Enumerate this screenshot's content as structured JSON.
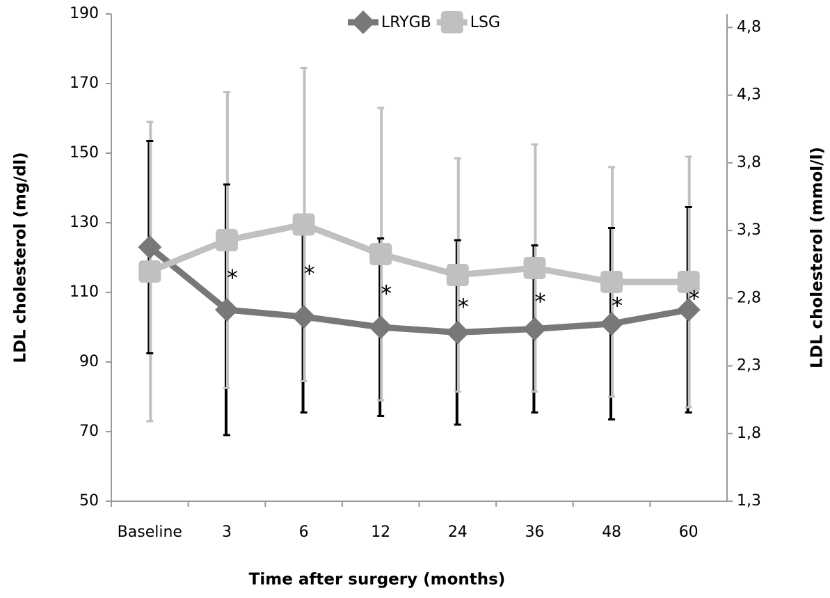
{
  "chart_data": {
    "type": "line",
    "x_label": "Time after surgery (months)",
    "y_label": "LDL cholesterol (mg/dl)",
    "y2_label": "LDL cholesterol (mmol/l)",
    "categories": [
      "Baseline",
      "3",
      "6",
      "12",
      "24",
      "36",
      "48",
      "60"
    ],
    "series": [
      {
        "name": "LRYGB",
        "color": "#787878",
        "marker": "diamond",
        "error_color": "#000000",
        "values": [
          123,
          105,
          103,
          100,
          98.5,
          99.5,
          101,
          105
        ],
        "errors": [
          30.5,
          36,
          27.5,
          25.5,
          26.5,
          24,
          27.5,
          29.5
        ]
      },
      {
        "name": "LSG",
        "color": "#c0c0c0",
        "marker": "square",
        "error_color": "#c0c0c0",
        "values": [
          116,
          125,
          129.5,
          121,
          115,
          117,
          113,
          113
        ],
        "errors": [
          43,
          42.5,
          45,
          42,
          33.5,
          35.5,
          33,
          36
        ]
      }
    ],
    "annotation_text": "*",
    "significant": [
      false,
      true,
      true,
      true,
      true,
      true,
      true,
      true
    ],
    "ylim": [
      50,
      190
    ],
    "yticks": [
      50,
      70,
      90,
      110,
      130,
      150,
      170,
      190
    ],
    "y2lim": [
      1.3,
      4.9
    ],
    "y2ticks": [
      {
        "value": 1.3,
        "label": "1,3"
      },
      {
        "value": 1.8,
        "label": "1,8"
      },
      {
        "value": 2.3,
        "label": "2,3"
      },
      {
        "value": 2.8,
        "label": "2,8"
      },
      {
        "value": 3.3,
        "label": "3,3"
      },
      {
        "value": 3.8,
        "label": "3,8"
      },
      {
        "value": 4.3,
        "label": "4,3"
      },
      {
        "value": 4.8,
        "label": "4,8"
      }
    ],
    "legend": "top"
  }
}
